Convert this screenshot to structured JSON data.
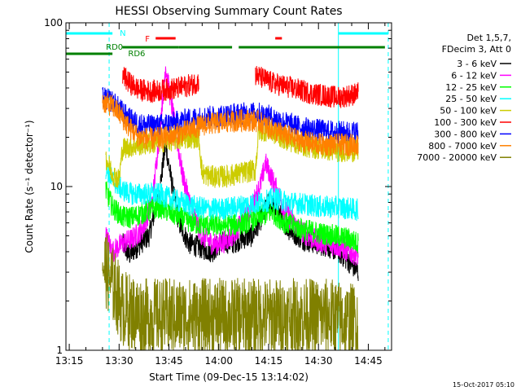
{
  "chart_data": {
    "type": "line",
    "title": "HESSI Observing Summary Count Rates",
    "xlabel": "Start Time (09-Dec-15 13:14:02)",
    "ylabel": "Count Rate (s⁻¹ detector⁻¹)",
    "x_scale": "time",
    "y_scale": "log",
    "xlim": [
      "13:14",
      "14:52"
    ],
    "ylim": [
      1,
      100
    ],
    "x_ticks": [
      "13:15",
      "13:30",
      "13:45",
      "14:00",
      "14:15",
      "14:30",
      "14:45"
    ],
    "y_ticks": [
      1,
      10,
      100
    ],
    "grid": false,
    "legend_position": "right",
    "legend_header": [
      "Det 1,5,7,",
      "FDecim 3, Att 0"
    ],
    "footer": "15-Oct-2017 05:10",
    "series": [
      {
        "name": "3 - 6 keV",
        "color": "#000000",
        "values": [
          [
            "13:31",
            4.5
          ],
          [
            "13:33",
            3.8
          ],
          [
            "13:36",
            4.4
          ],
          [
            "13:39",
            5.0
          ],
          [
            "13:42",
            9.0
          ],
          [
            "13:44",
            18.0
          ],
          [
            "13:46",
            10.0
          ],
          [
            "13:48",
            6.0
          ],
          [
            "13:51",
            4.5
          ],
          [
            "13:55",
            4.2
          ],
          [
            "13:58",
            4.0
          ],
          [
            "14:01",
            4.6
          ],
          [
            "14:04",
            4.5
          ],
          [
            "14:07",
            4.8
          ],
          [
            "14:10",
            5.0
          ],
          [
            "14:13",
            6.5
          ],
          [
            "14:15",
            8.0
          ],
          [
            "14:18",
            7.0
          ],
          [
            "14:21",
            5.5
          ],
          [
            "14:25",
            4.8
          ],
          [
            "14:29",
            4.5
          ],
          [
            "14:33",
            4.3
          ],
          [
            "14:36",
            4.0
          ],
          [
            "14:39",
            3.5
          ],
          [
            "14:42",
            3.0
          ]
        ]
      },
      {
        "name": "6 - 12 keV",
        "color": "#ff00ff",
        "values": [
          [
            "13:26",
            5.0
          ],
          [
            "13:28",
            4.0
          ],
          [
            "13:31",
            4.5
          ],
          [
            "13:34",
            4.8
          ],
          [
            "13:37",
            5.5
          ],
          [
            "13:40",
            8.0
          ],
          [
            "13:42",
            20.0
          ],
          [
            "13:44",
            55.0
          ],
          [
            "13:45",
            40.0
          ],
          [
            "13:47",
            22.0
          ],
          [
            "13:49",
            12.0
          ],
          [
            "13:52",
            7.0
          ],
          [
            "13:55",
            5.0
          ],
          [
            "13:58",
            4.5
          ],
          [
            "14:01",
            4.5
          ],
          [
            "14:04",
            5.0
          ],
          [
            "14:07",
            6.0
          ],
          [
            "14:10",
            7.5
          ],
          [
            "14:13",
            11.0
          ],
          [
            "14:14",
            14.0
          ],
          [
            "14:17",
            10.0
          ],
          [
            "14:20",
            7.0
          ],
          [
            "14:24",
            5.5
          ],
          [
            "14:28",
            4.8
          ],
          [
            "14:32",
            4.5
          ],
          [
            "14:36",
            4.3
          ],
          [
            "14:39",
            4.0
          ],
          [
            "14:42",
            3.8
          ]
        ]
      },
      {
        "name": "12 - 25 keV",
        "color": "#00ff00",
        "values": [
          [
            "13:26",
            9.5
          ],
          [
            "13:28",
            7.5
          ],
          [
            "13:31",
            6.5
          ],
          [
            "13:34",
            6.5
          ],
          [
            "13:38",
            7.0
          ],
          [
            "13:42",
            7.5
          ],
          [
            "13:45",
            7.0
          ],
          [
            "13:48",
            6.5
          ],
          [
            "13:52",
            6.0
          ],
          [
            "13:56",
            5.8
          ],
          [
            "14:00",
            5.8
          ],
          [
            "14:04",
            5.8
          ],
          [
            "14:08",
            6.0
          ],
          [
            "14:12",
            6.5
          ],
          [
            "14:16",
            7.0
          ],
          [
            "14:20",
            6.0
          ],
          [
            "14:25",
            5.5
          ],
          [
            "14:30",
            5.2
          ],
          [
            "14:35",
            5.0
          ],
          [
            "14:39",
            4.8
          ],
          [
            "14:42",
            4.5
          ]
        ]
      },
      {
        "name": "25 - 50 keV",
        "color": "#00ffff",
        "values": [
          [
            "13:26",
            13.0
          ],
          [
            "13:28",
            11.0
          ],
          [
            "13:31",
            9.5
          ],
          [
            "13:34",
            9.0
          ],
          [
            "13:38",
            9.0
          ],
          [
            "13:42",
            9.0
          ],
          [
            "13:45",
            8.5
          ],
          [
            "13:49",
            8.0
          ],
          [
            "13:53",
            7.5
          ],
          [
            "13:57",
            7.3
          ],
          [
            "14:01",
            7.3
          ],
          [
            "14:05",
            7.5
          ],
          [
            "14:09",
            7.8
          ],
          [
            "14:13",
            8.0
          ],
          [
            "14:17",
            8.5
          ],
          [
            "14:21",
            8.0
          ],
          [
            "14:26",
            7.8
          ],
          [
            "14:31",
            7.5
          ],
          [
            "14:36",
            7.5
          ],
          [
            "14:40",
            7.3
          ],
          [
            "14:42",
            7.2
          ]
        ]
      },
      {
        "name": "50 - 100 keV",
        "color": "#cccc00",
        "values": [
          [
            "13:26",
            15.0
          ],
          [
            "13:28",
            12.0
          ],
          [
            "13:30",
            11.0
          ],
          [
            "13:31",
            17.0
          ],
          [
            "13:33",
            17.5
          ],
          [
            "13:36",
            18.0
          ],
          [
            "13:40",
            18.5
          ],
          [
            "13:44",
            19.0
          ],
          [
            "13:48",
            19.5
          ],
          [
            "13:52",
            20.0
          ],
          [
            "13:54",
            20.0
          ],
          [
            "13:55",
            12.0
          ],
          [
            "13:58",
            11.5
          ],
          [
            "14:02",
            11.5
          ],
          [
            "14:06",
            12.0
          ],
          [
            "14:10",
            12.5
          ],
          [
            "14:11",
            12.5
          ],
          [
            "14:12",
            22.0
          ],
          [
            "14:15",
            22.0
          ],
          [
            "14:19",
            20.0
          ],
          [
            "14:23",
            18.5
          ],
          [
            "14:27",
            17.5
          ],
          [
            "14:31",
            17.0
          ],
          [
            "14:35",
            16.5
          ],
          [
            "14:39",
            16.5
          ],
          [
            "14:42",
            16.5
          ]
        ]
      },
      {
        "name": "100 - 300 keV",
        "color": "#ff0000",
        "values": [
          [
            "13:31",
            48.0
          ],
          [
            "13:33",
            43.0
          ],
          [
            "13:36",
            39.0
          ],
          [
            "13:40",
            38.0
          ],
          [
            "13:44",
            39.0
          ],
          [
            "13:48",
            40.0
          ],
          [
            "13:52",
            42.0
          ],
          [
            "13:54",
            44.0
          ],
          [
            "14:11",
            48.0
          ],
          [
            "14:13",
            46.0
          ],
          [
            "14:16",
            43.0
          ],
          [
            "14:20",
            41.0
          ],
          [
            "14:24",
            39.0
          ],
          [
            "14:28",
            37.0
          ],
          [
            "14:32",
            36.0
          ],
          [
            "14:36",
            35.0
          ],
          [
            "14:39",
            36.0
          ],
          [
            "14:42",
            37.0
          ]
        ]
      },
      {
        "name": "300 - 800 keV",
        "color": "#0000ff",
        "values": [
          [
            "13:25",
            35.0
          ],
          [
            "13:28",
            33.0
          ],
          [
            "13:30",
            30.0
          ],
          [
            "13:33",
            26.0
          ],
          [
            "13:36",
            24.0
          ],
          [
            "13:40",
            23.5
          ],
          [
            "13:44",
            24.0
          ],
          [
            "13:48",
            25.0
          ],
          [
            "13:52",
            26.0
          ],
          [
            "13:56",
            26.5
          ],
          [
            "14:00",
            27.0
          ],
          [
            "14:04",
            27.5
          ],
          [
            "14:08",
            28.0
          ],
          [
            "14:12",
            28.0
          ],
          [
            "14:15",
            27.0
          ],
          [
            "14:19",
            25.0
          ],
          [
            "14:23",
            23.5
          ],
          [
            "14:27",
            22.5
          ],
          [
            "14:31",
            22.0
          ],
          [
            "14:35",
            21.5
          ],
          [
            "14:39",
            21.5
          ],
          [
            "14:42",
            21.5
          ]
        ]
      },
      {
        "name": "800 - 7000 keV",
        "color": "#ff8000",
        "values": [
          [
            "13:25",
            33.0
          ],
          [
            "13:28",
            31.0
          ],
          [
            "13:30",
            28.0
          ],
          [
            "13:33",
            23.0
          ],
          [
            "13:36",
            20.0
          ],
          [
            "13:40",
            19.5
          ],
          [
            "13:44",
            20.0
          ],
          [
            "13:48",
            21.0
          ],
          [
            "13:52",
            22.5
          ],
          [
            "13:56",
            24.0
          ],
          [
            "14:00",
            24.5
          ],
          [
            "14:04",
            25.0
          ],
          [
            "14:08",
            25.5
          ],
          [
            "14:12",
            25.0
          ],
          [
            "14:15",
            23.0
          ],
          [
            "14:19",
            21.0
          ],
          [
            "14:23",
            19.5
          ],
          [
            "14:27",
            18.5
          ],
          [
            "14:31",
            18.0
          ],
          [
            "14:35",
            18.0
          ],
          [
            "14:39",
            18.0
          ],
          [
            "14:42",
            18.0
          ]
        ]
      },
      {
        "name": "7000 - 20000 keV",
        "color": "#808000",
        "values": [
          [
            "13:25",
            3.5
          ],
          [
            "13:27",
            2.8
          ],
          [
            "13:29",
            2.3
          ],
          [
            "13:31",
            1.8
          ],
          [
            "13:34",
            1.7
          ],
          [
            "13:38",
            1.6
          ],
          [
            "13:42",
            1.6
          ],
          [
            "13:46",
            1.6
          ],
          [
            "13:50",
            1.6
          ],
          [
            "13:54",
            1.6
          ],
          [
            "13:58",
            1.6
          ],
          [
            "14:02",
            1.6
          ],
          [
            "14:06",
            1.6
          ],
          [
            "14:10",
            1.6
          ],
          [
            "14:14",
            1.6
          ],
          [
            "14:18",
            1.6
          ],
          [
            "14:22",
            1.6
          ],
          [
            "14:26",
            1.6
          ],
          [
            "14:30",
            1.6
          ],
          [
            "14:34",
            1.6
          ],
          [
            "14:38",
            1.5
          ],
          [
            "14:42",
            1.5
          ]
        ]
      }
    ],
    "state_bars": [
      {
        "label": "N",
        "color": "#00ffff",
        "spans": [
          [
            "13:14",
            "13:28"
          ],
          [
            "14:36",
            "14:51"
          ]
        ]
      },
      {
        "label": "RD0",
        "color": "#008000",
        "spans": [
          [
            "13:14",
            "13:28"
          ]
        ]
      },
      {
        "label": "RD6",
        "color": "#008000",
        "spans": [
          [
            "13:31",
            "13:48"
          ],
          [
            "13:48",
            "14:04"
          ],
          [
            "14:06",
            "14:50"
          ]
        ]
      },
      {
        "label": "F",
        "color": "#ff0000",
        "spans": [
          [
            "13:41",
            "13:47"
          ],
          [
            "14:17",
            "14:19"
          ]
        ]
      }
    ],
    "vertical_lines": [
      {
        "x": "13:14",
        "color": "#00ffff",
        "style": "solid"
      },
      {
        "x": "13:27",
        "color": "#00ffff",
        "style": "dashed"
      },
      {
        "x": "14:36",
        "color": "#00ffff",
        "style": "solid"
      },
      {
        "x": "14:51",
        "color": "#00ffff",
        "style": "dashed"
      }
    ]
  }
}
